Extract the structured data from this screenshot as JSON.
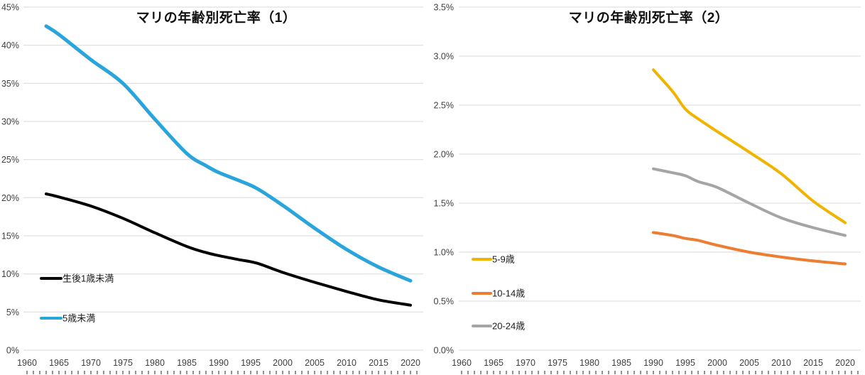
{
  "page": {
    "background": "#ffffff"
  },
  "style": {
    "grid_color": "#d9d9d9",
    "axis_text_color": "#404040",
    "title_color": "#111111",
    "minor_tick_color": "#595959"
  },
  "chart_data": [
    {
      "type": "line",
      "title": "マリの年齢別死亡率（1）",
      "xlabel": "",
      "ylabel": "",
      "ylim": [
        0,
        45
      ],
      "xlim": [
        1960,
        2022
      ],
      "grid": true,
      "legend_position": "inside-left",
      "y_tick_labels": [
        "0%",
        "5%",
        "10%",
        "15%",
        "20%",
        "25%",
        "30%",
        "35%",
        "40%",
        "45%"
      ],
      "x_tick_labels": [
        "1960",
        "1965",
        "1970",
        "1975",
        "1980",
        "1985",
        "1990",
        "1995",
        "2000",
        "2005",
        "2010",
        "2015",
        "2020"
      ],
      "series": [
        {
          "name": "生後1歳未満",
          "color": "#000000",
          "line_width": 4,
          "x": [
            1963,
            1965,
            1970,
            1975,
            1980,
            1985,
            1988,
            1990,
            1993,
            1996,
            2000,
            2005,
            2010,
            2015,
            2020
          ],
          "values": [
            20.5,
            20.1,
            18.9,
            17.3,
            15.4,
            13.6,
            12.8,
            12.4,
            11.9,
            11.4,
            10.2,
            8.9,
            7.7,
            6.6,
            5.9
          ]
        },
        {
          "name": "5歳未満",
          "color": "#2aa5dc",
          "line_width": 5,
          "x": [
            1963,
            1965,
            1970,
            1975,
            1980,
            1985,
            1988,
            1990,
            1993,
            1996,
            2000,
            2005,
            2010,
            2015,
            2020
          ],
          "values": [
            42.5,
            41.4,
            38.1,
            35.0,
            30.3,
            25.8,
            24.2,
            23.3,
            22.3,
            21.2,
            19.0,
            16.0,
            13.2,
            10.9,
            9.1
          ]
        }
      ]
    },
    {
      "type": "line",
      "title": "マリの年齢別死亡率（2）",
      "xlabel": "",
      "ylabel": "",
      "ylim": [
        0,
        3.5
      ],
      "xlim": [
        1960,
        2022
      ],
      "grid": true,
      "legend_position": "inside-left",
      "y_tick_labels": [
        "0.0%",
        "0.5%",
        "1.0%",
        "1.5%",
        "2.0%",
        "2.5%",
        "3.0%",
        "3.5%"
      ],
      "x_tick_labels": [
        "1960",
        "1965",
        "1970",
        "1975",
        "1980",
        "1985",
        "1990",
        "1995",
        "2000",
        "2005",
        "2010",
        "2015",
        "2020"
      ],
      "series": [
        {
          "name": "5-9歳",
          "color": "#f0b400",
          "line_width": 4,
          "x": [
            1990,
            1993,
            1995,
            1997,
            2000,
            2005,
            2010,
            2015,
            2020
          ],
          "values": [
            2.86,
            2.64,
            2.46,
            2.36,
            2.23,
            2.02,
            1.8,
            1.52,
            1.3
          ]
        },
        {
          "name": "10-14歳",
          "color": "#ed7d31",
          "line_width": 4,
          "x": [
            1990,
            1993,
            1995,
            1997,
            2000,
            2005,
            2010,
            2015,
            2020
          ],
          "values": [
            1.2,
            1.17,
            1.14,
            1.12,
            1.07,
            1.0,
            0.95,
            0.91,
            0.88
          ]
        },
        {
          "name": "20-24歳",
          "color": "#a5a5a5",
          "line_width": 4,
          "x": [
            1990,
            1993,
            1995,
            1997,
            2000,
            2005,
            2010,
            2015,
            2020
          ],
          "values": [
            1.85,
            1.81,
            1.78,
            1.72,
            1.66,
            1.5,
            1.35,
            1.25,
            1.17
          ]
        }
      ]
    }
  ]
}
